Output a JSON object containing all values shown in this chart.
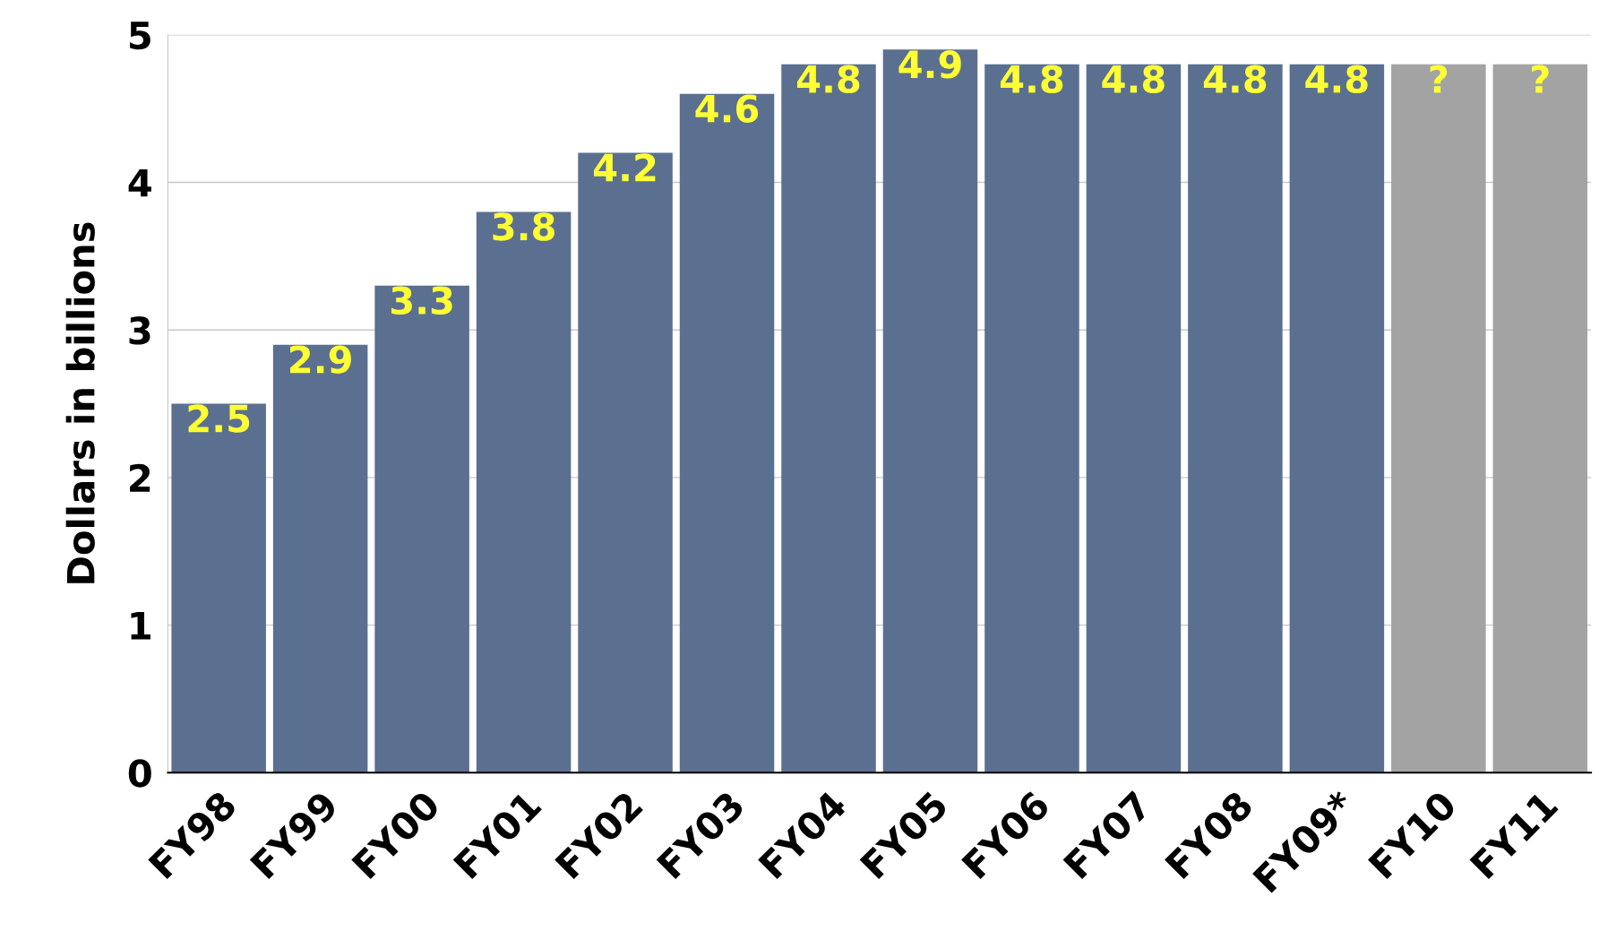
{
  "chart_data": {
    "type": "bar",
    "ylabel": "Dollars in billions",
    "categories": [
      "FY98",
      "FY99",
      "FY00",
      "FY01",
      "FY02",
      "FY03",
      "FY04",
      "FY05",
      "FY06",
      "FY07",
      "FY08",
      "FY09*",
      "FY10",
      "FY11"
    ],
    "values": [
      2.5,
      2.9,
      3.3,
      3.8,
      4.2,
      4.6,
      4.8,
      4.9,
      4.8,
      4.8,
      4.8,
      4.8,
      4.8,
      4.8
    ],
    "colors": [
      "#5b7090",
      "#5b7090",
      "#5b7090",
      "#5b7090",
      "#5b7090",
      "#5b7090",
      "#5b7090",
      "#5b7090",
      "#5b7090",
      "#5b7090",
      "#5b7090",
      "#5b7090",
      "#a3a3a3",
      "#a3a3a3"
    ],
    "value_labels": [
      "2.5",
      "2.9",
      "3.3",
      "3.8",
      "4.2",
      "4.6",
      "4.8",
      "4.9",
      "4.8",
      "4.8",
      "4.8",
      "4.8",
      "?",
      "?"
    ],
    "ylim": [
      0,
      5
    ],
    "yticks": [
      0,
      1,
      2,
      3,
      4,
      5
    ],
    "grid": "y"
  }
}
